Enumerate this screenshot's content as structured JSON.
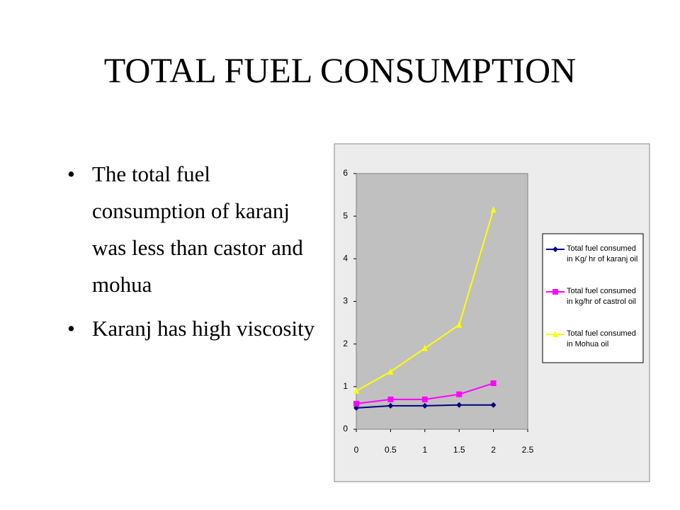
{
  "title": "TOTAL FUEL CONSUMPTION",
  "bullets": [
    "The total fuel consumption of karanj was less than castor and mohua",
    "Karanj has high viscosity"
  ],
  "chart_data": {
    "type": "line",
    "x": [
      0,
      0.5,
      1,
      1.5,
      2
    ],
    "xlim": [
      0,
      2.5
    ],
    "xticks": [
      0,
      0.5,
      1,
      1.5,
      2,
      2.5
    ],
    "ylim": [
      0,
      6
    ],
    "yticks": [
      0,
      1,
      2,
      3,
      4,
      5,
      6
    ],
    "legend": "right",
    "series": [
      {
        "name": "Total fuel consumed in Kg/ hr of karanj oil",
        "color": "#000080",
        "marker": "diamond",
        "values": [
          0.5,
          0.55,
          0.55,
          0.57,
          0.57
        ]
      },
      {
        "name": "Total fuel consumed in kg/hr of castrol oil",
        "color": "#ff00ff",
        "marker": "square",
        "values": [
          0.6,
          0.7,
          0.7,
          0.82,
          1.08
        ]
      },
      {
        "name": "Total fuel consumed in Mohua oil",
        "color": "#ffff00",
        "marker": "triangle",
        "values": [
          0.9,
          1.35,
          1.9,
          2.45,
          5.15
        ]
      }
    ]
  }
}
